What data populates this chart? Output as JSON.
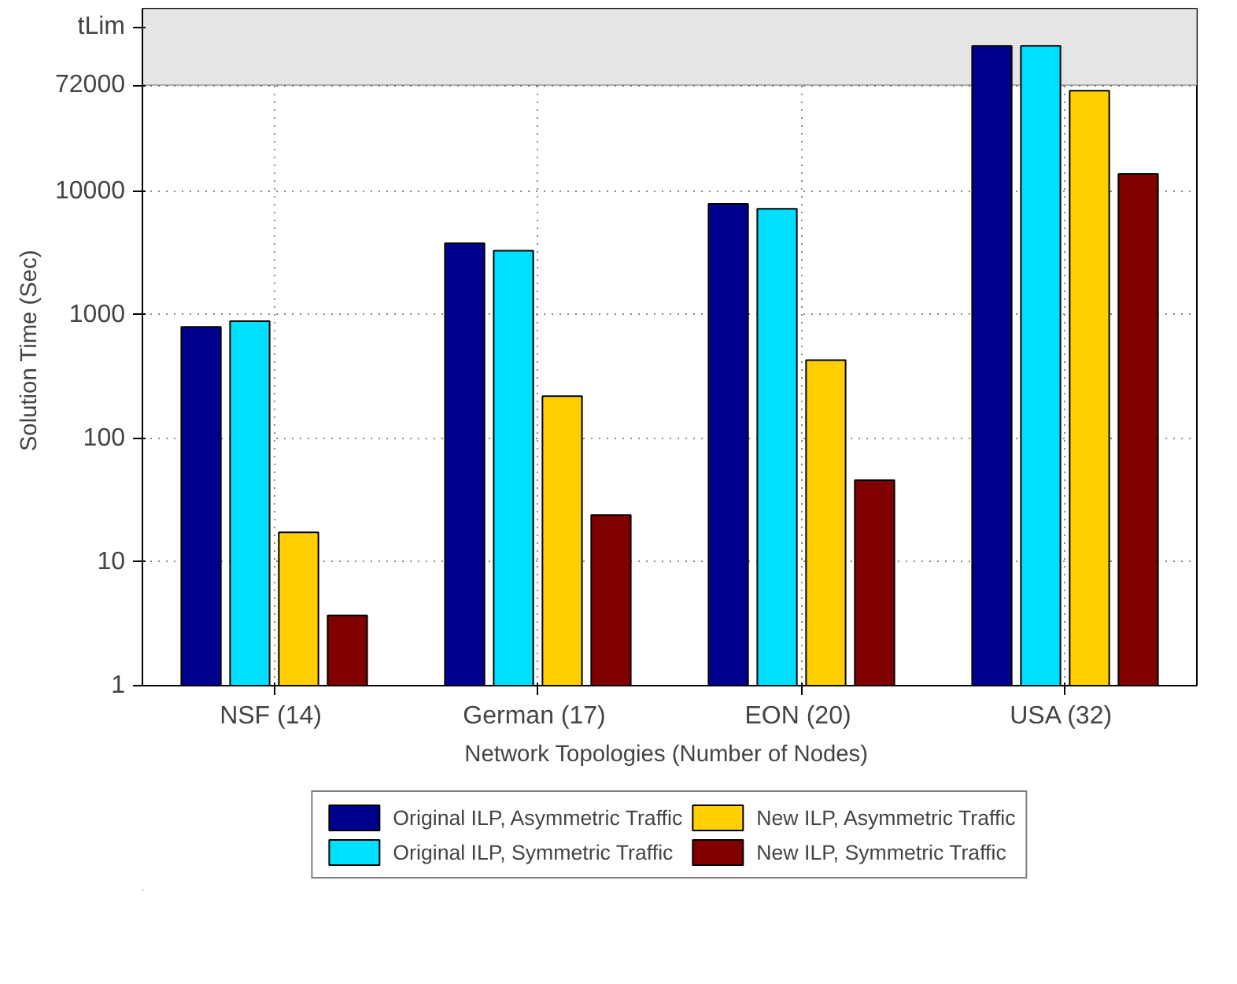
{
  "chart_data": {
    "type": "bar",
    "xlabel": "Network Topologies  (Number of Nodes)",
    "ylabel": "Solution Time  (Sec)",
    "categories": [
      "NSF  (14)",
      "German  (17)",
      "EON  (20)",
      "USA  (32)"
    ],
    "series": [
      {
        "name": "Original ILP, Asymmetric Traffic",
        "color": "#00008f",
        "values": [
          800,
          3800,
          7900,
          150000
        ]
      },
      {
        "name": "Original ILP, Symmetric Traffic",
        "color": "#00dfff",
        "values": [
          890,
          3300,
          7200,
          150000
        ]
      },
      {
        "name": "New ILP, Asymmetric Traffic",
        "color": "#ffcf00",
        "values": [
          17.4,
          220,
          430,
          65000
        ]
      },
      {
        "name": "New ILP, Symmetric Traffic",
        "color": "#800000",
        "values": [
          3.7,
          24,
          46,
          13800
        ]
      }
    ],
    "log": "y",
    "ylim": [
      1,
      300000
    ],
    "yticks": [
      1,
      10,
      100,
      1000,
      10000,
      72000,
      {
        "value": 214000,
        "label": "tLim"
      }
    ],
    "bands": [
      {
        "axis": "y",
        "from": 72000,
        "to": 300000,
        "color": "#e5e5e5"
      }
    ],
    "grid": true,
    "legend": "bottom"
  }
}
